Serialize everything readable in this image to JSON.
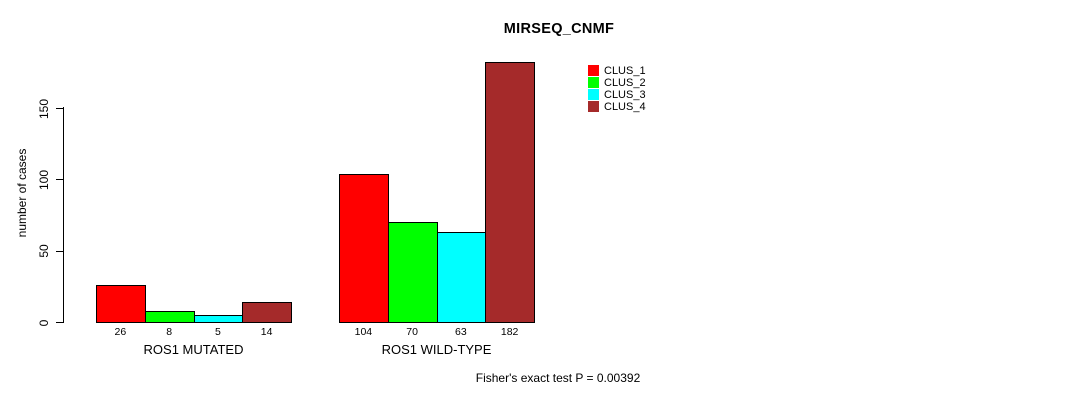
{
  "title": "MIRSEQ_CNMF",
  "annotation": "Fisher's exact test P = 0.00392",
  "chart_data": {
    "type": "bar",
    "title": "MIRSEQ_CNMF",
    "xlabel": "",
    "ylabel": "number of cases",
    "categories": [
      "ROS1 MUTATED",
      "ROS1 WILD-TYPE"
    ],
    "series": [
      {
        "name": "CLUS_1",
        "color": "#FF0000",
        "values": [
          26,
          104
        ]
      },
      {
        "name": "CLUS_2",
        "color": "#00FF00",
        "values": [
          8,
          70
        ]
      },
      {
        "name": "CLUS_3",
        "color": "#00FFFF",
        "values": [
          5,
          63
        ]
      },
      {
        "name": "CLUS_4",
        "color": "#A52A2A",
        "values": [
          14,
          182
        ]
      }
    ],
    "yticks": [
      0,
      50,
      100,
      150
    ],
    "ylim": [
      0,
      185
    ],
    "bar_value_labels_shown": true,
    "grid": false,
    "legend_position": "top-right",
    "annotation": "Fisher's exact test P = 0.00392"
  }
}
